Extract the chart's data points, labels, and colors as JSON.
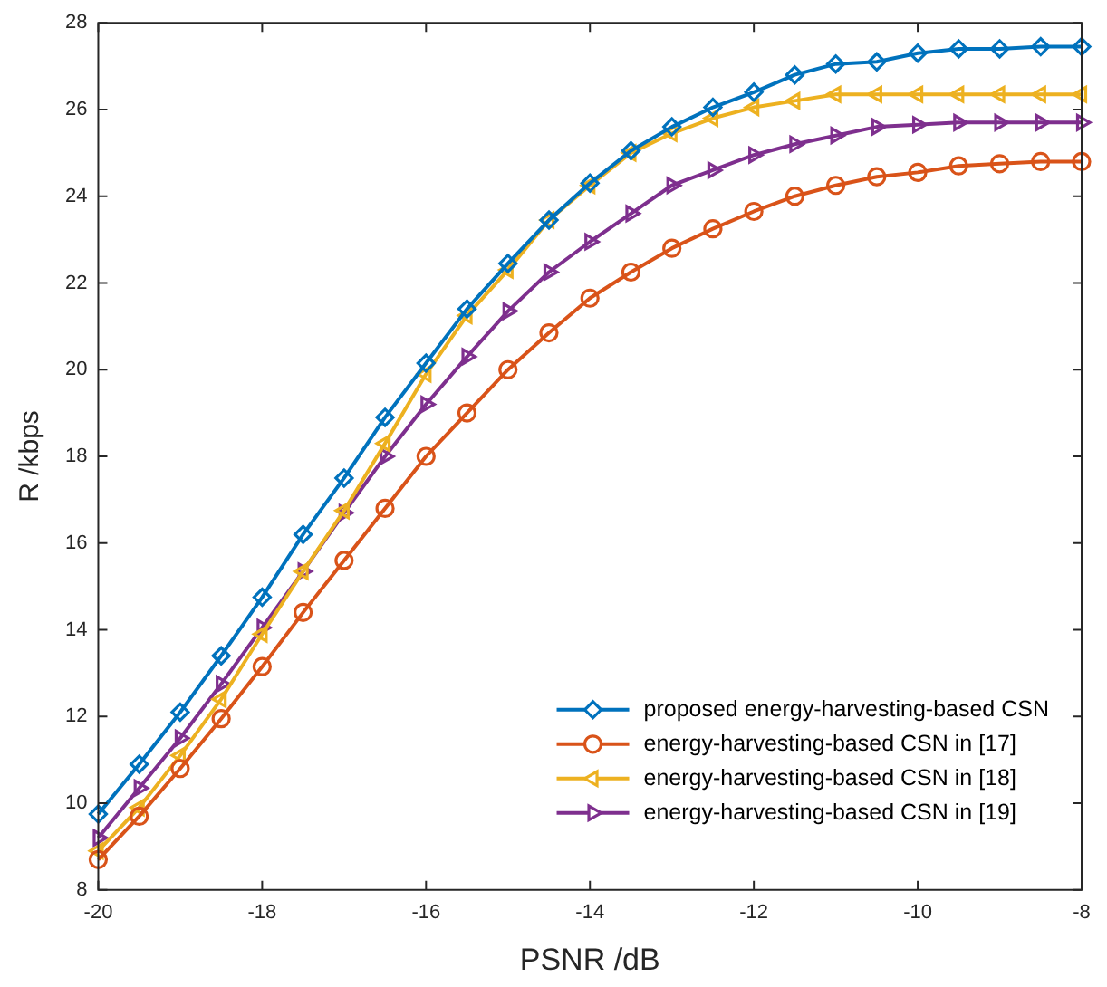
{
  "chart_data": {
    "type": "line",
    "xlabel": "PSNR /dB",
    "ylabel": "R /kbps",
    "x": [
      -20,
      -19.5,
      -19,
      -18.5,
      -18,
      -17.5,
      -17,
      -16.5,
      -16,
      -15.5,
      -15,
      -14.5,
      -14,
      -13.5,
      -13,
      -12.5,
      -12,
      -11.5,
      -11,
      -10.5,
      -10,
      -9.5,
      -9,
      -8.5,
      -8
    ],
    "xlim": [
      -20,
      -8
    ],
    "xticks": [
      -20,
      -18,
      -16,
      -14,
      -12,
      -10,
      -8
    ],
    "ylim": [
      8,
      28
    ],
    "yticks": [
      8,
      10,
      12,
      14,
      16,
      18,
      20,
      22,
      24,
      26,
      28
    ],
    "grid": false,
    "legend": "bottom right",
    "line_style": "solid",
    "series": [
      {
        "name": "proposed energy-harvesting-based CSN",
        "color": "#0072bd",
        "marker": "diamond",
        "values": [
          9.75,
          10.9,
          12.1,
          13.4,
          14.75,
          16.2,
          17.5,
          18.9,
          20.15,
          21.4,
          22.45,
          23.45,
          24.3,
          25.05,
          25.6,
          26.05,
          26.4,
          26.8,
          27.05,
          27.1,
          27.3,
          27.4,
          27.4,
          27.45,
          27.45
        ]
      },
      {
        "name": "energy-harvesting-based CSN in [17]",
        "color": "#d95319",
        "marker": "circle",
        "values": [
          8.7,
          9.7,
          10.8,
          11.95,
          13.15,
          14.4,
          15.6,
          16.8,
          18.0,
          19.0,
          20.0,
          20.85,
          21.65,
          22.25,
          22.8,
          23.25,
          23.65,
          24.0,
          24.25,
          24.45,
          24.55,
          24.7,
          24.75,
          24.8,
          24.8
        ]
      },
      {
        "name": "energy-harvesting-based CSN in [18]",
        "color": "#edb120",
        "marker": "triangle",
        "values": [
          8.9,
          9.9,
          11.1,
          12.4,
          13.9,
          15.35,
          16.75,
          18.3,
          19.9,
          21.25,
          22.3,
          23.45,
          24.25,
          25.0,
          25.45,
          25.8,
          26.05,
          26.2,
          26.35,
          26.35,
          26.35,
          26.35,
          26.35,
          26.35,
          26.35
        ]
      },
      {
        "name": "energy-harvesting-based CSN in [19]",
        "color": "#7e2f8e",
        "marker": "triangle",
        "values": [
          9.2,
          10.35,
          11.5,
          12.75,
          14.05,
          15.35,
          16.7,
          18.0,
          19.2,
          20.3,
          21.35,
          22.25,
          22.95,
          23.6,
          24.25,
          24.6,
          24.95,
          25.2,
          25.4,
          25.6,
          25.65,
          25.7,
          25.7,
          25.7,
          25.7
        ]
      }
    ]
  }
}
